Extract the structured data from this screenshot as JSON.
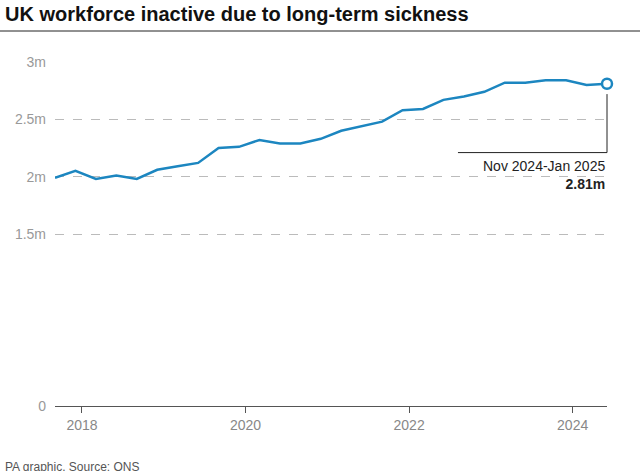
{
  "chart_data": {
    "type": "line",
    "title": "UK workforce inactive due to long-term sickness",
    "source": "PA graphic. Source: ONS",
    "x": [
      2017.67,
      2017.92,
      2018.17,
      2018.42,
      2018.67,
      2018.92,
      2019.17,
      2019.42,
      2019.67,
      2019.92,
      2020.17,
      2020.42,
      2020.67,
      2020.92,
      2021.17,
      2021.42,
      2021.67,
      2021.92,
      2022.17,
      2022.42,
      2022.67,
      2022.92,
      2023.17,
      2023.42,
      2023.67,
      2023.92,
      2024.17,
      2024.42
    ],
    "values": [
      1.99,
      2.05,
      1.98,
      2.01,
      1.98,
      2.06,
      2.09,
      2.12,
      2.25,
      2.26,
      2.32,
      2.29,
      2.29,
      2.33,
      2.4,
      2.44,
      2.48,
      2.58,
      2.59,
      2.67,
      2.7,
      2.74,
      2.82,
      2.82,
      2.84,
      2.84,
      2.8,
      2.81
    ],
    "color": "#1c86c0",
    "xlim": [
      2017.67,
      2024.42
    ],
    "xticks": [
      2018,
      2020,
      2022,
      2024
    ],
    "ylim": [
      0,
      3
    ],
    "yticks": [
      0,
      {
        "value": 1.5,
        "label": "1.5m"
      },
      {
        "value": 2,
        "label": "2m"
      },
      {
        "value": 2.5,
        "label": "2.5m"
      },
      {
        "value": 3,
        "label": "3m"
      }
    ],
    "grid": true,
    "annotations": [
      {
        "x": 2024.42,
        "y": 2.81,
        "text": "Nov 2024-Jan 2025",
        "value_label": "2.81m",
        "marker": "circle"
      }
    ]
  }
}
